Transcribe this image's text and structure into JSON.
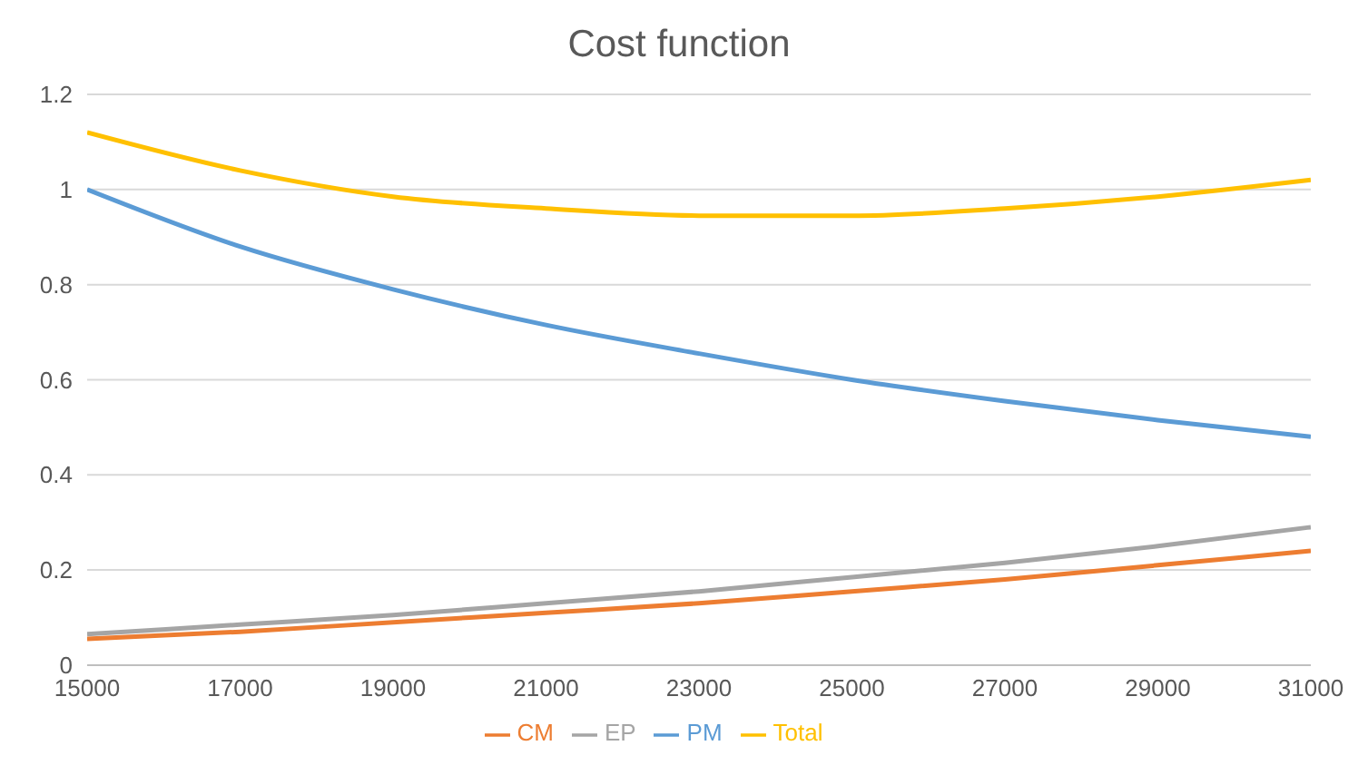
{
  "chart_data": {
    "type": "line",
    "title": "Cost function",
    "x": [
      15000,
      17000,
      19000,
      21000,
      23000,
      25000,
      27000,
      29000,
      31000
    ],
    "series": [
      {
        "name": "PM",
        "color": "#5b9bd5",
        "values": [
          1.0,
          0.88,
          0.79,
          0.715,
          0.655,
          0.6,
          0.555,
          0.515,
          0.48
        ]
      },
      {
        "name": "CM",
        "color": "#ed7d31",
        "values": [
          0.055,
          0.07,
          0.09,
          0.11,
          0.13,
          0.155,
          0.18,
          0.21,
          0.24
        ]
      },
      {
        "name": "EP",
        "color": "#a5a5a5",
        "values": [
          0.065,
          0.085,
          0.105,
          0.13,
          0.155,
          0.185,
          0.215,
          0.25,
          0.29
        ]
      },
      {
        "name": "Total",
        "color": "#ffc000",
        "values": [
          1.12,
          1.04,
          0.985,
          0.96,
          0.945,
          0.945,
          0.96,
          0.985,
          1.02
        ]
      }
    ],
    "xlim": [
      15000,
      31000
    ],
    "xticks": [
      15000,
      17000,
      19000,
      21000,
      23000,
      25000,
      27000,
      29000,
      31000
    ],
    "ylim": [
      0,
      1.2
    ],
    "yticks": [
      0,
      0.2,
      0.4,
      0.6,
      0.8,
      1,
      1.2
    ],
    "grid": "y",
    "legend": "bottom",
    "marker": "none",
    "line_style": "solid"
  }
}
